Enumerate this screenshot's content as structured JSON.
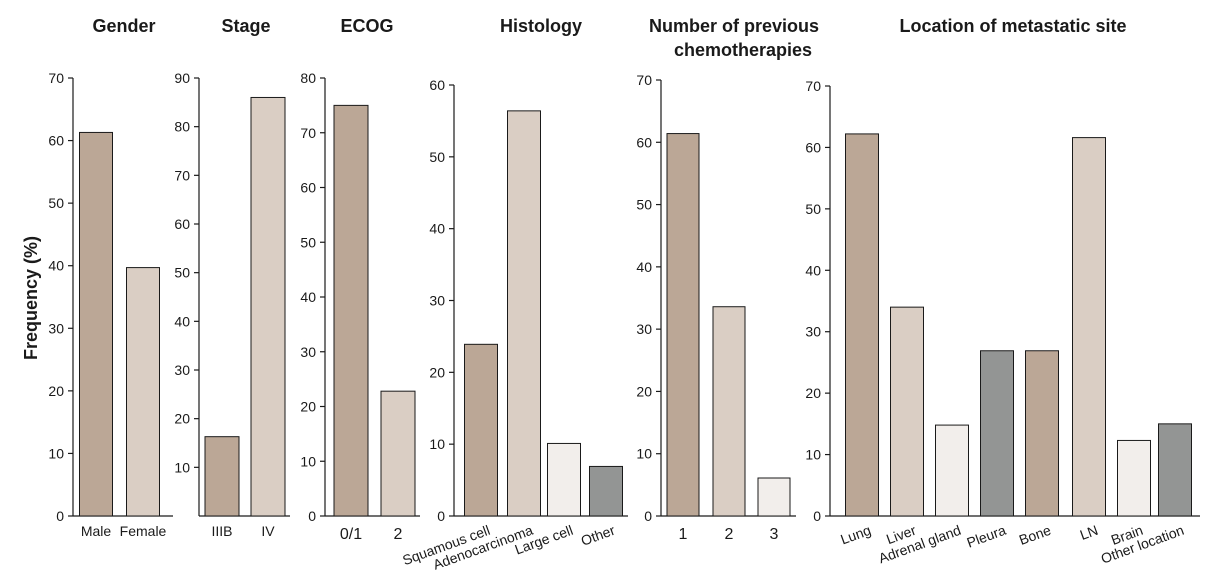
{
  "ylabel": "Frequency (%)",
  "colors": {
    "tan": "#bba796",
    "light": "#dacec4",
    "pale": "#f2eeeb",
    "grey": "#939594"
  },
  "chart_data": [
    {
      "type": "bar",
      "title": "Gender",
      "ylim": [
        0,
        70
      ],
      "yticks": [
        0,
        10,
        20,
        30,
        40,
        50,
        60,
        70
      ],
      "categories": [
        "Male",
        "Female"
      ],
      "values": [
        61.3,
        39.7
      ],
      "colors": [
        "tan",
        "light"
      ]
    },
    {
      "type": "bar",
      "title": "Stage",
      "ylim": [
        0,
        90
      ],
      "yticks": [
        10,
        20,
        30,
        40,
        50,
        60,
        70,
        80,
        90
      ],
      "categories": [
        "IIIB",
        "IV"
      ],
      "values": [
        16.3,
        86.0
      ],
      "colors": [
        "tan",
        "light"
      ]
    },
    {
      "type": "bar",
      "title": "ECOG",
      "ylim": [
        0,
        80
      ],
      "yticks": [
        0,
        10,
        20,
        30,
        40,
        50,
        60,
        70,
        80
      ],
      "categories": [
        "0/1",
        "2"
      ],
      "values": [
        75.0,
        22.8
      ],
      "colors": [
        "tan",
        "light"
      ]
    },
    {
      "type": "bar",
      "title": "Histology",
      "ylim": [
        0,
        60
      ],
      "yticks": [
        0,
        10,
        20,
        30,
        40,
        50,
        60
      ],
      "categories": [
        "Squamous cell",
        "Adenocarcinoma",
        "Large cell",
        "Other"
      ],
      "values": [
        23.9,
        56.4,
        10.1,
        6.9
      ],
      "colors": [
        "tan",
        "light",
        "pale",
        "grey"
      ]
    },
    {
      "type": "bar",
      "title": "Number of previous chemotherapies",
      "ylim": [
        0,
        70
      ],
      "yticks": [
        0,
        10,
        20,
        30,
        40,
        50,
        60,
        70
      ],
      "categories": [
        "1",
        "2",
        "3"
      ],
      "values": [
        61.4,
        33.6,
        6.1
      ],
      "colors": [
        "tan",
        "light",
        "pale"
      ]
    },
    {
      "type": "bar",
      "title": "Location of metastatic site",
      "ylim": [
        0,
        70
      ],
      "yticks": [
        0,
        10,
        20,
        30,
        40,
        50,
        60,
        70
      ],
      "categories": [
        "Lung",
        "Liver",
        "Adrenal gland",
        "Pleura",
        "Bone",
        "LN",
        "Brain",
        "Other location"
      ],
      "values": [
        62.2,
        34.0,
        14.8,
        26.9,
        26.9,
        61.6,
        12.3,
        15.0
      ],
      "colors": [
        "tan",
        "light",
        "pale",
        "grey",
        "tan",
        "light",
        "pale",
        "grey"
      ]
    }
  ]
}
